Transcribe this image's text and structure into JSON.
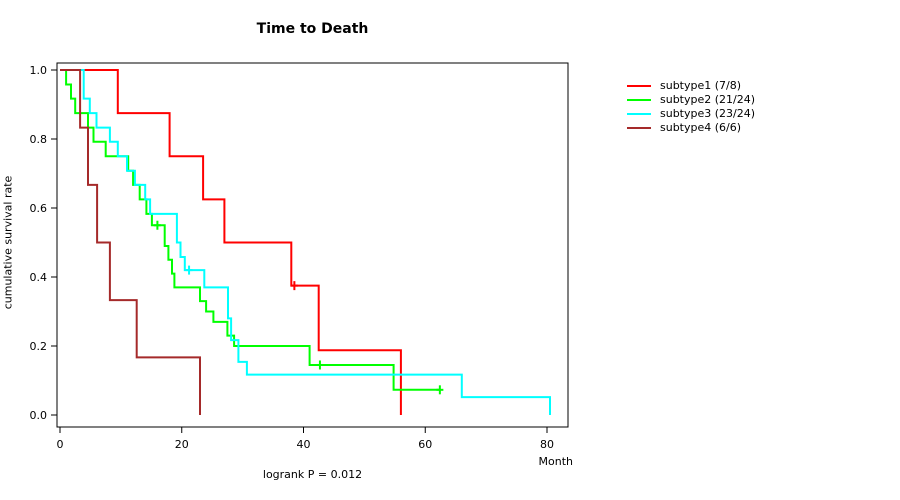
{
  "chart_data": {
    "type": "line",
    "chart_kind": "kaplan-meier-step",
    "title": "Time to Death",
    "xlabel": "Month",
    "ylabel": "cumulative survival rate",
    "footnote": "logrank P = 0.012",
    "xlim": [
      0,
      84
    ],
    "ylim": [
      0.0,
      1.0
    ],
    "grid": "off",
    "legend_position": "right-outside",
    "x_ticks": [
      {
        "v": 0,
        "label": "0"
      },
      {
        "v": 20,
        "label": "20"
      },
      {
        "v": 40,
        "label": "40"
      },
      {
        "v": 60,
        "label": "60"
      },
      {
        "v": 80,
        "label": "80"
      }
    ],
    "y_ticks": [
      {
        "v": 0.0,
        "label": "0.0"
      },
      {
        "v": 0.2,
        "label": "0.2"
      },
      {
        "v": 0.4,
        "label": "0.4"
      },
      {
        "v": 0.6,
        "label": "0.6"
      },
      {
        "v": 0.8,
        "label": "0.8"
      },
      {
        "v": 1.0,
        "label": "1.0"
      }
    ],
    "series": [
      {
        "name": "subtype1",
        "label": "subtype1 (7/8)",
        "color": "#ff0000",
        "start_value": 1.0,
        "steps": [
          [
            9.5,
            0.875
          ],
          [
            18,
            0.75
          ],
          [
            23.5,
            0.625
          ],
          [
            27,
            0.5
          ],
          [
            38,
            0.375
          ],
          [
            42.5,
            0.1875
          ],
          [
            56,
            0.0
          ]
        ],
        "end_month": 56,
        "censors": [
          [
            38.5,
            0.375
          ]
        ]
      },
      {
        "name": "subtype2",
        "label": "subtype2 (21/24)",
        "color": "#00ff00",
        "start_value": 1.0,
        "steps": [
          [
            1,
            0.958
          ],
          [
            1.8,
            0.917
          ],
          [
            2.5,
            0.875
          ],
          [
            4.6,
            0.833
          ],
          [
            5.5,
            0.792
          ],
          [
            7.5,
            0.75
          ],
          [
            11.2,
            0.708
          ],
          [
            12,
            0.667
          ],
          [
            13.1,
            0.625
          ],
          [
            14.2,
            0.583
          ],
          [
            15.1,
            0.55
          ],
          [
            17.2,
            0.49
          ],
          [
            17.8,
            0.45
          ],
          [
            18.4,
            0.41
          ],
          [
            18.8,
            0.37
          ],
          [
            23,
            0.33
          ],
          [
            24,
            0.3
          ],
          [
            25.2,
            0.27
          ],
          [
            27.5,
            0.23
          ],
          [
            28.6,
            0.2
          ],
          [
            41,
            0.145
          ],
          [
            54.8,
            0.073
          ]
        ],
        "end_month": 62.4,
        "censors": [
          [
            16,
            0.55
          ],
          [
            42.7,
            0.145
          ],
          [
            62.4,
            0.073
          ]
        ]
      },
      {
        "name": "subtype3",
        "label": "subtype3 (23/24)",
        "color": "#00ffff",
        "start_value": 1.0,
        "steps": [
          [
            3.9,
            0.917
          ],
          [
            4.9,
            0.875
          ],
          [
            6,
            0.833
          ],
          [
            8.2,
            0.792
          ],
          [
            9.5,
            0.75
          ],
          [
            11,
            0.708
          ],
          [
            12.3,
            0.667
          ],
          [
            14,
            0.625
          ],
          [
            14.8,
            0.583
          ],
          [
            19.2,
            0.5
          ],
          [
            19.8,
            0.458
          ],
          [
            20.5,
            0.42
          ],
          [
            23.7,
            0.37
          ],
          [
            27.6,
            0.28
          ],
          [
            28.1,
            0.217
          ],
          [
            29.3,
            0.154
          ],
          [
            30.7,
            0.117
          ],
          [
            66,
            0.052
          ],
          [
            80.5,
            0.0
          ]
        ],
        "end_month": 80.5,
        "censors": [
          [
            21.2,
            0.42
          ]
        ]
      },
      {
        "name": "subtype4",
        "label": "subtype4 (6/6)",
        "color": "#a52a2a",
        "start_value": 1.0,
        "steps": [
          [
            3.3,
            0.833
          ],
          [
            4.6,
            0.667
          ],
          [
            6.1,
            0.5
          ],
          [
            8.2,
            0.333
          ],
          [
            12.6,
            0.167
          ],
          [
            23,
            0.0
          ]
        ],
        "end_month": 23,
        "censors": []
      }
    ]
  }
}
